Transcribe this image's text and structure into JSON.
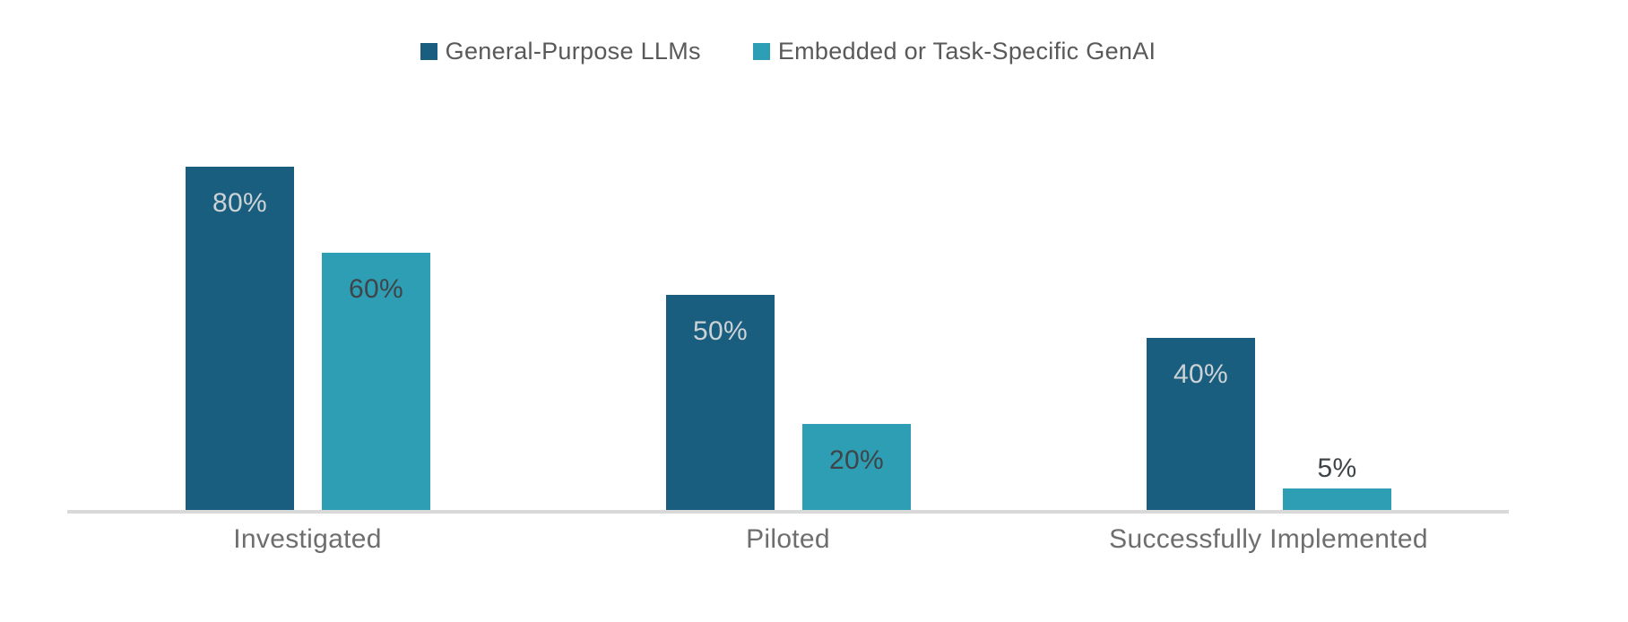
{
  "chart_data": {
    "type": "bar",
    "title": "",
    "categories": [
      "Investigated",
      "Piloted",
      "Successfully Implemented"
    ],
    "series": [
      {
        "name": "General-Purpose LLMs",
        "color": "#1a5e7f",
        "label_color": "#ccd2d6",
        "values": [
          80,
          50,
          40
        ],
        "labels": [
          "80%",
          "50%",
          "40%"
        ]
      },
      {
        "name": "Embedded or Task-Specific GenAI",
        "color": "#2d9eb4",
        "label_color": "#3f4448",
        "values": [
          60,
          20,
          5
        ],
        "labels": [
          "60%",
          "20%",
          "5%"
        ]
      }
    ],
    "xlabel": "",
    "ylabel": "",
    "ylim": [
      0,
      100
    ],
    "grid": false,
    "legend_position": "top-center",
    "value_label_format": "percent",
    "axis_line_color": "#d9d9d9",
    "category_label_color": "#6e6e6e",
    "legend_text_color": "#595959"
  }
}
